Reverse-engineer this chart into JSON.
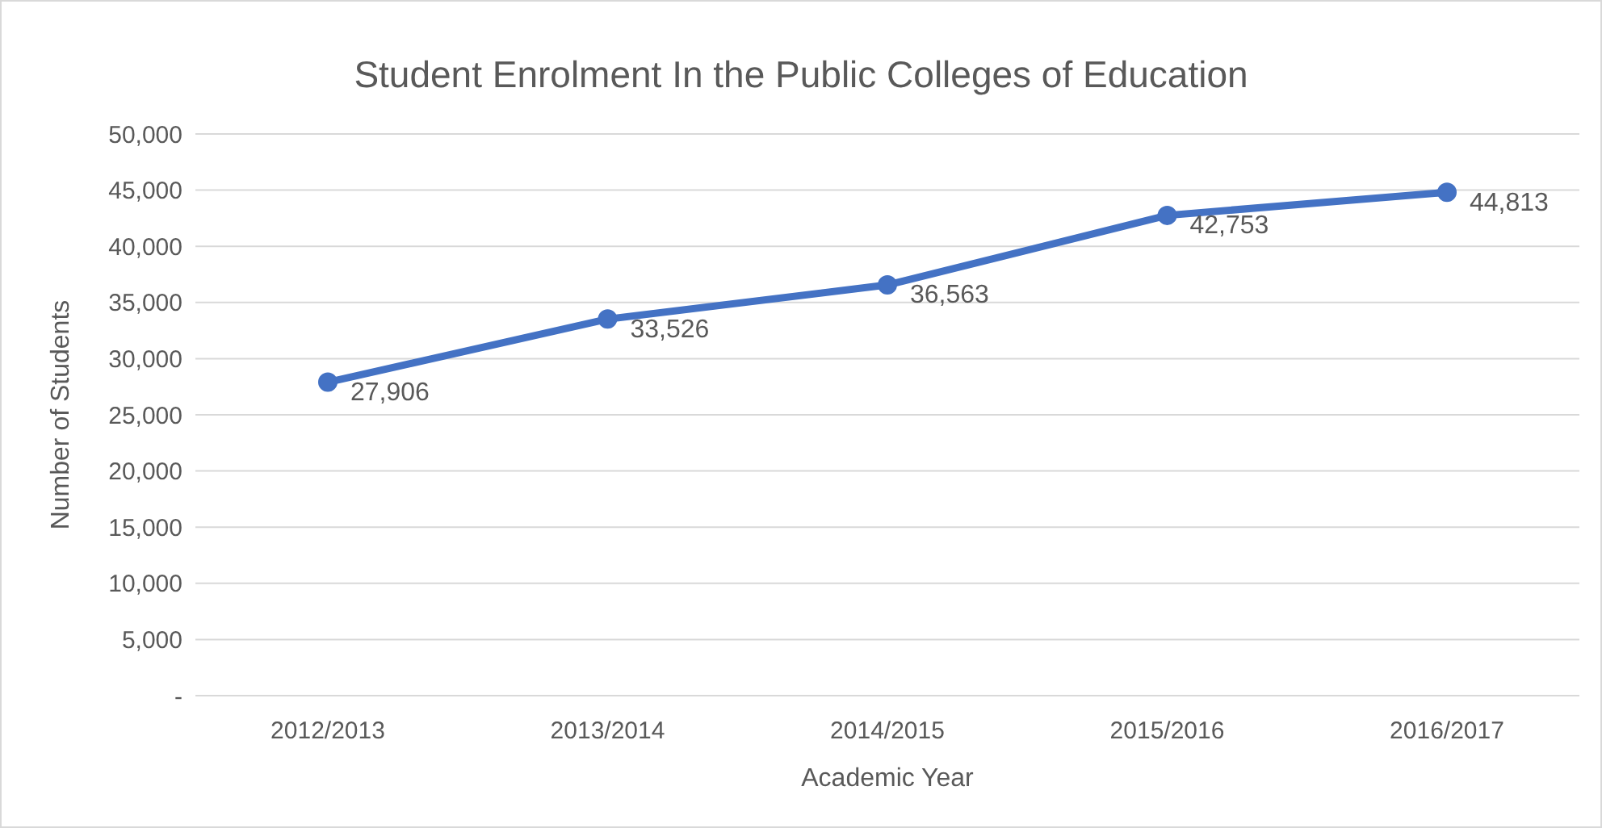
{
  "chart_data": {
    "type": "line",
    "title": "Student Enrolment In the Public Colleges of Education",
    "xlabel": "Academic Year",
    "ylabel": "Number of Students",
    "categories": [
      "2012/2013",
      "2013/2014",
      "2014/2015",
      "2015/2016",
      "2016/2017"
    ],
    "series": [
      {
        "color": "#4472c4",
        "values": [
          27906,
          33526,
          36563,
          42753,
          44813
        ],
        "value_labels": [
          "27,906",
          "33,526",
          "36,563",
          "42,753",
          "44,813"
        ]
      }
    ],
    "ylim": [
      0,
      50000
    ],
    "yticks": [
      {
        "value": 0,
        "label": "-"
      },
      {
        "value": 5000,
        "label": "5,000"
      },
      {
        "value": 10000,
        "label": "10,000"
      },
      {
        "value": 15000,
        "label": "15,000"
      },
      {
        "value": 20000,
        "label": "20,000"
      },
      {
        "value": 25000,
        "label": "25,000"
      },
      {
        "value": 30000,
        "label": "30,000"
      },
      {
        "value": 35000,
        "label": "35,000"
      },
      {
        "value": 40000,
        "label": "40,000"
      },
      {
        "value": 45000,
        "label": "45,000"
      },
      {
        "value": 50000,
        "label": "50,000"
      }
    ],
    "grid": "y",
    "legend": false,
    "marker": "circle",
    "line_style": "solid"
  }
}
